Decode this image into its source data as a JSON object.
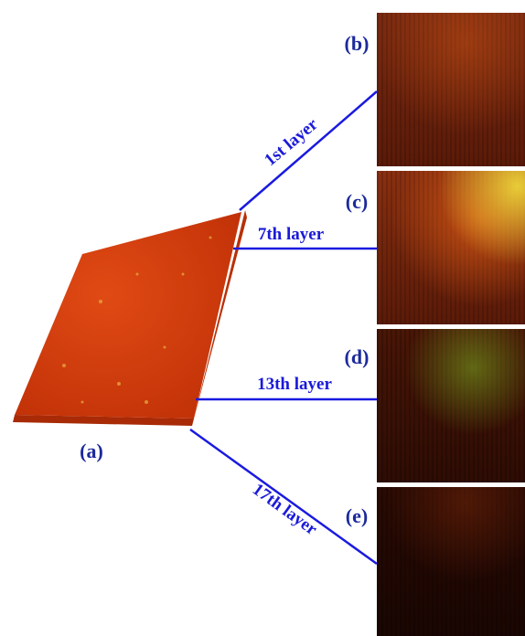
{
  "panel_labels": [
    "(a)",
    "(b)",
    "(c)",
    "(d)",
    "(e)"
  ],
  "layer_labels": [
    "1st layer",
    "7th layer",
    "13th layer",
    "17th layer"
  ]
}
